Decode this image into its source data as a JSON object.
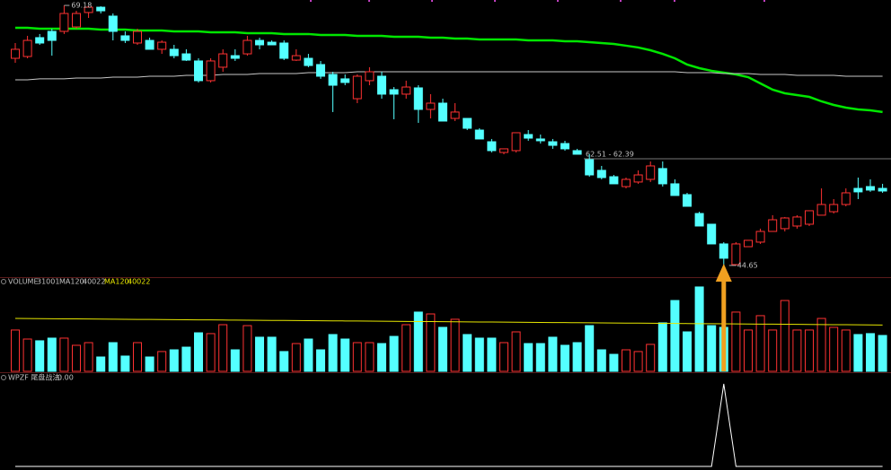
{
  "chart_data": [
    {
      "type": "candlestick",
      "open": [
        64.19,
        64.36,
        66.14,
        66.73,
        66.73,
        67.15,
        68.51,
        69.01,
        68.17,
        66.31,
        65.63,
        65.88,
        65.04,
        65.04,
        64.61,
        63.94,
        62.08,
        63.35,
        64.44,
        64.61,
        65.88,
        65.71,
        65.63,
        64.02,
        64.19,
        63.6,
        62.67,
        62.25,
        60.38,
        62.08,
        62.5,
        61.23,
        60.81,
        61.4,
        59.37,
        59.96,
        58.52,
        58.52,
        57.42,
        56.32,
        55.31,
        55.48,
        57.0,
        56.58,
        56.32,
        56.15,
        55.48,
        54.63,
        53.62,
        53.02,
        52.09,
        52.52,
        52.77,
        53.79,
        52.35,
        51.33,
        49.55,
        48.54,
        46.68,
        44.73,
        46.42,
        46.85,
        47.86,
        48.12,
        48.37,
        48.54,
        49.39,
        49.72,
        50.4,
        51.92,
        52.09,
        51.92
      ],
      "high": [
        65.63,
        66.31,
        66.48,
        66.98,
        69.18,
        68.67,
        69.1,
        69.1,
        68.42,
        66.73,
        66.98,
        66.14,
        65.88,
        65.46,
        65.04,
        64.19,
        64.19,
        65.04,
        65.04,
        66.31,
        66.14,
        65.88,
        65.88,
        65.04,
        64.61,
        63.94,
        62.92,
        62.67,
        62.67,
        63.35,
        62.92,
        61.48,
        62.08,
        61.65,
        60.81,
        60.38,
        59.96,
        58.52,
        57.59,
        56.58,
        55.65,
        57.17,
        57.42,
        57.0,
        56.58,
        56.41,
        55.65,
        55.14,
        54.04,
        53.19,
        52.94,
        53.62,
        54.46,
        54.46,
        52.77,
        51.5,
        49.72,
        48.54,
        46.85,
        46.85,
        47.02,
        48.12,
        49.39,
        49.22,
        49.39,
        49.81,
        51.92,
        50.91,
        51.92,
        52.94,
        52.77,
        52.35
      ],
      "low": [
        63.77,
        64.19,
        65.46,
        64.44,
        66.48,
        66.98,
        68.0,
        68.42,
        65.88,
        65.63,
        65.46,
        65.04,
        64.61,
        64.19,
        63.94,
        61.91,
        61.91,
        62.92,
        63.94,
        64.44,
        65.04,
        65.46,
        64.02,
        63.94,
        63.35,
        62.25,
        59.12,
        61.65,
        59.96,
        61.65,
        60.38,
        58.44,
        60.38,
        58.1,
        58.52,
        58.27,
        58.27,
        57.42,
        56.58,
        55.31,
        55.14,
        55.31,
        56.41,
        56.15,
        55.65,
        55.48,
        55.14,
        53.02,
        52.77,
        52.35,
        51.92,
        52.35,
        52.52,
        52.09,
        51.25,
        50.23,
        48.37,
        46.68,
        44.65,
        44.73,
        46.42,
        46.68,
        47.86,
        47.86,
        48.12,
        48.37,
        49.39,
        49.55,
        50.23,
        50.91,
        51.59,
        51.5
      ],
      "close": [
        65.04,
        65.88,
        65.63,
        65.88,
        68.42,
        68.42,
        69.01,
        68.67,
        66.73,
        65.88,
        66.73,
        65.04,
        65.71,
        64.44,
        64.02,
        62.08,
        63.94,
        64.61,
        64.19,
        65.88,
        65.46,
        65.46,
        64.19,
        64.44,
        63.51,
        62.5,
        61.65,
        61.91,
        62.5,
        62.92,
        60.81,
        60.81,
        61.48,
        59.37,
        59.96,
        58.27,
        59.12,
        57.59,
        56.58,
        55.48,
        55.65,
        57.17,
        56.66,
        56.41,
        55.98,
        55.65,
        55.14,
        53.19,
        52.94,
        52.35,
        52.77,
        53.19,
        54.04,
        52.35,
        51.25,
        50.23,
        48.37,
        46.68,
        45.33,
        46.68,
        47.02,
        47.86,
        48.96,
        49.13,
        49.22,
        49.81,
        50.4,
        50.4,
        51.5,
        51.59,
        51.76,
        51.67
      ],
      "ylim": [
        43.63,
        69.69
      ],
      "up_color": "#ff3232",
      "down_color": "#54ffff",
      "lines": [
        {
          "color": "#00e600",
          "values": [
            67.07,
            67.07,
            66.98,
            66.98,
            66.98,
            66.98,
            66.98,
            66.9,
            66.9,
            66.9,
            66.81,
            66.81,
            66.81,
            66.73,
            66.73,
            66.73,
            66.64,
            66.64,
            66.64,
            66.56,
            66.56,
            66.56,
            66.48,
            66.48,
            66.48,
            66.39,
            66.39,
            66.39,
            66.31,
            66.31,
            66.31,
            66.22,
            66.22,
            66.22,
            66.14,
            66.14,
            66.05,
            66.05,
            65.97,
            65.97,
            65.97,
            65.97,
            65.88,
            65.88,
            65.88,
            65.8,
            65.8,
            65.71,
            65.63,
            65.54,
            65.38,
            65.21,
            64.95,
            64.61,
            64.19,
            63.6,
            63.26,
            63.01,
            62.84,
            62.67,
            62.41,
            61.82,
            61.23,
            60.89,
            60.72,
            60.55,
            60.13,
            59.79,
            59.54,
            59.37,
            59.28,
            59.12
          ]
        },
        {
          "color": "#c8c8c8",
          "values": [
            62.16,
            62.16,
            62.25,
            62.25,
            62.25,
            62.33,
            62.33,
            62.33,
            62.41,
            62.41,
            62.41,
            62.5,
            62.5,
            62.5,
            62.58,
            62.58,
            62.58,
            62.67,
            62.67,
            62.67,
            62.75,
            62.75,
            62.75,
            62.75,
            62.84,
            62.84,
            62.84,
            62.84,
            62.92,
            62.92,
            62.92,
            62.92,
            62.92,
            62.92,
            62.92,
            62.92,
            62.92,
            62.92,
            62.92,
            62.92,
            62.92,
            62.92,
            62.92,
            62.92,
            62.92,
            62.92,
            62.92,
            62.92,
            62.92,
            62.92,
            62.92,
            62.92,
            62.92,
            62.92,
            62.92,
            62.84,
            62.84,
            62.84,
            62.75,
            62.75,
            62.75,
            62.67,
            62.67,
            62.67,
            62.58,
            62.58,
            62.58,
            62.58,
            62.5,
            62.5,
            62.5,
            62.5
          ]
        }
      ],
      "reference_line": {
        "value": 54.71,
        "label": "62.51 - 62.39"
      }
    },
    {
      "type": "bar",
      "label": "VOLUME:",
      "ma_label": "MA120:",
      "ma_color": "#e6e600",
      "values": [
        35700,
        27900,
        26400,
        28700,
        28700,
        22500,
        24800,
        12400,
        24800,
        13200,
        24800,
        12400,
        17100,
        18600,
        20900,
        33300,
        32600,
        40300,
        18600,
        39500,
        29500,
        29500,
        17100,
        24000,
        27900,
        18600,
        31800,
        27900,
        24800,
        24800,
        24000,
        30200,
        40300,
        51200,
        49600,
        38000,
        45000,
        31800,
        28700,
        28700,
        24800,
        34100,
        24000,
        24000,
        29500,
        22500,
        24800,
        39500,
        18600,
        14700,
        18600,
        17100,
        23300,
        41900,
        61200,
        34100,
        72900,
        39500,
        38000,
        51200,
        35700,
        48100,
        35700,
        61200,
        35700,
        35700,
        45700,
        38000,
        35700,
        31800,
        32600,
        31001
      ],
      "ma_values": [
        45700,
        45620,
        45540,
        45460,
        45380,
        45300,
        45220,
        45140,
        45060,
        44980,
        44900,
        44820,
        44740,
        44660,
        44580,
        44500,
        44420,
        44340,
        44260,
        44180,
        44100,
        44020,
        43940,
        43860,
        43780,
        43700,
        43620,
        43540,
        43460,
        43380,
        43300,
        43220,
        43140,
        43060,
        42980,
        42900,
        42820,
        42740,
        42660,
        42580,
        42500,
        42420,
        42340,
        42260,
        42180,
        42100,
        42020,
        41940,
        41860,
        41780,
        41700,
        41620,
        41540,
        41460,
        41380,
        41300,
        41220,
        41140,
        41060,
        40980,
        40900,
        40820,
        40740,
        40660,
        40580,
        40500,
        40420,
        40340,
        40260,
        40180,
        40100,
        40022
      ],
      "ylim": [
        0,
        74400
      ]
    },
    {
      "type": "line",
      "label": "WPZF 尾盘战法:",
      "color": "#ffffff",
      "values": [
        0,
        0,
        0,
        0,
        0,
        0,
        0,
        0,
        0,
        0,
        0,
        0,
        0,
        0,
        0,
        0,
        0,
        0,
        0,
        0,
        0,
        0,
        0,
        0,
        0,
        0,
        0,
        0,
        0,
        0,
        0,
        0,
        0,
        0,
        0,
        0,
        0,
        0,
        0,
        0,
        0,
        0,
        0,
        0,
        0,
        0,
        0,
        0,
        0,
        0,
        0,
        0,
        0,
        0,
        0,
        0,
        0,
        0,
        1,
        0,
        0,
        0,
        0,
        0,
        0,
        0,
        0,
        0,
        0,
        0,
        0,
        0
      ],
      "value_labels": [
        null,
        null,
        null,
        null,
        null,
        null,
        null,
        null,
        null,
        null,
        null,
        null,
        null,
        null,
        null,
        null,
        null,
        null,
        null,
        null,
        null,
        null,
        null,
        null,
        null,
        null,
        null,
        null,
        null,
        null,
        null,
        null,
        null,
        null,
        null,
        null,
        null,
        null,
        null,
        null,
        null,
        null,
        null,
        null,
        null,
        null,
        null,
        null,
        null,
        null,
        null,
        null,
        null,
        null,
        null,
        null,
        null,
        null,
        null,
        null,
        null,
        null,
        null,
        null,
        null,
        null,
        null,
        null,
        null,
        null,
        null,
        "0.00"
      ],
      "ylim": [
        0,
        1
      ]
    }
  ]
}
